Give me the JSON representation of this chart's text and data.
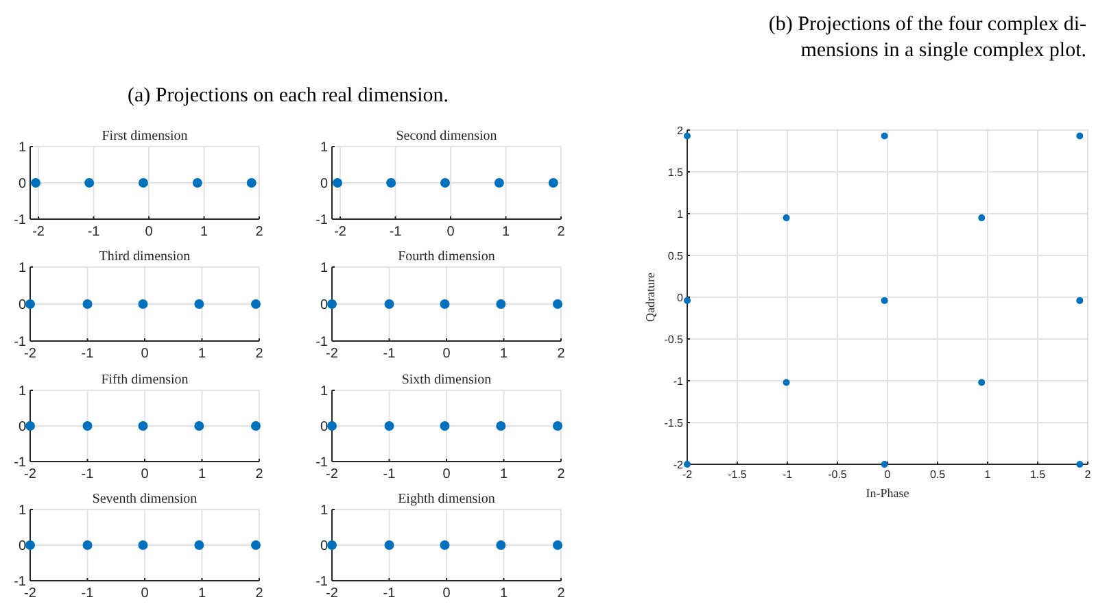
{
  "chart_data": [
    {
      "type": "scatter",
      "title": "First dimension",
      "annotations": [
        "(a) Projections on each real dimension."
      ],
      "x": [
        -2.05,
        -1.08,
        -0.1,
        0.88,
        1.86
      ],
      "series": [
        {
          "color": "#0072bd",
          "values": [
            0,
            0,
            0,
            0,
            0
          ]
        }
      ],
      "xlim": [
        -2.15,
        2
      ],
      "xticks": [
        -2,
        -1,
        0,
        1,
        2
      ],
      "ylim": [
        -1,
        1
      ],
      "yticks": [
        -1,
        0,
        1
      ],
      "grid": true,
      "marker": "circle"
    },
    {
      "type": "scatter",
      "title": "Second dimension",
      "x": [
        -2.05,
        -1.08,
        -0.1,
        0.88,
        1.86
      ],
      "series": [
        {
          "color": "#0072bd",
          "values": [
            0,
            0,
            0,
            0,
            0
          ]
        }
      ],
      "xlim": [
        -2.15,
        2
      ],
      "xticks": [
        -2,
        -1,
        0,
        1,
        2
      ],
      "ylim": [
        -1,
        1
      ],
      "yticks": [
        -1,
        0,
        1
      ],
      "grid": true,
      "marker": "circle"
    },
    {
      "type": "scatter",
      "title": "Third dimension",
      "x": [
        -2,
        -1,
        -0.03,
        0.95,
        1.94
      ],
      "series": [
        {
          "color": "#0072bd",
          "values": [
            0,
            0,
            0,
            0,
            0
          ]
        }
      ],
      "xlim": [
        -2,
        2
      ],
      "xticks": [
        -2,
        -1,
        0,
        1,
        2
      ],
      "ylim": [
        -1,
        1
      ],
      "yticks": [
        -1,
        0,
        1
      ],
      "grid": true,
      "marker": "circle"
    },
    {
      "type": "scatter",
      "title": "Fourth dimension",
      "x": [
        -2,
        -1,
        -0.03,
        0.95,
        1.94
      ],
      "series": [
        {
          "color": "#0072bd",
          "values": [
            0,
            0,
            0,
            0,
            0
          ]
        }
      ],
      "xlim": [
        -2,
        2
      ],
      "xticks": [
        -2,
        -1,
        0,
        1,
        2
      ],
      "ylim": [
        -1,
        1
      ],
      "yticks": [
        -1,
        0,
        1
      ],
      "grid": true,
      "marker": "circle"
    },
    {
      "type": "scatter",
      "title": "Fifth dimension",
      "x": [
        -2,
        -1,
        -0.03,
        0.95,
        1.94
      ],
      "series": [
        {
          "color": "#0072bd",
          "values": [
            0,
            0,
            0,
            0,
            0
          ]
        }
      ],
      "xlim": [
        -2,
        2
      ],
      "xticks": [
        -2,
        -1,
        0,
        1,
        2
      ],
      "ylim": [
        -1,
        1
      ],
      "yticks": [
        -1,
        0,
        1
      ],
      "grid": true,
      "marker": "circle"
    },
    {
      "type": "scatter",
      "title": "Sixth dimension",
      "x": [
        -2,
        -1,
        -0.03,
        0.95,
        1.94
      ],
      "series": [
        {
          "color": "#0072bd",
          "values": [
            0,
            0,
            0,
            0,
            0
          ]
        }
      ],
      "xlim": [
        -2,
        2
      ],
      "xticks": [
        -2,
        -1,
        0,
        1,
        2
      ],
      "ylim": [
        -1,
        1
      ],
      "yticks": [
        -1,
        0,
        1
      ],
      "grid": true,
      "marker": "circle"
    },
    {
      "type": "scatter",
      "title": "Seventh dimension",
      "x": [
        -2,
        -1,
        -0.03,
        0.95,
        1.94
      ],
      "series": [
        {
          "color": "#0072bd",
          "values": [
            0,
            0,
            0,
            0,
            0
          ]
        }
      ],
      "xlim": [
        -2,
        2
      ],
      "xticks": [
        -2,
        -1,
        0,
        1,
        2
      ],
      "ylim": [
        -1,
        1
      ],
      "yticks": [
        -1,
        0,
        1
      ],
      "grid": true,
      "marker": "circle"
    },
    {
      "type": "scatter",
      "title": "Eighth dimension",
      "x": [
        -2,
        -1,
        -0.03,
        0.95,
        1.94
      ],
      "series": [
        {
          "color": "#0072bd",
          "values": [
            0,
            0,
            0,
            0,
            0
          ]
        }
      ],
      "xlim": [
        -2,
        2
      ],
      "xticks": [
        -2,
        -1,
        0,
        1,
        2
      ],
      "ylim": [
        -1,
        1
      ],
      "yticks": [
        -1,
        0,
        1
      ],
      "grid": true,
      "marker": "circle"
    },
    {
      "type": "scatter",
      "title": "(b) Projections of the four complex di-\nmensions in a single complex plot.",
      "xlabel": "In-Phase",
      "ylabel": "Qadrature",
      "x": [
        -2,
        -0.03,
        1.92,
        -1.01,
        0.94,
        -2,
        -0.03,
        1.92,
        -1.01,
        0.94,
        -2,
        -0.03,
        1.92
      ],
      "series": [
        {
          "color": "#0072bd",
          "values": [
            1.93,
            1.93,
            1.93,
            0.95,
            0.95,
            -0.04,
            -0.04,
            -0.04,
            -1.02,
            -1.02,
            -2,
            -2,
            -2
          ]
        }
      ],
      "xlim": [
        -2,
        2
      ],
      "xticks": [
        -2,
        -1.5,
        -1,
        -0.5,
        0,
        0.5,
        1,
        1.5,
        2
      ],
      "ylim": [
        -2,
        2
      ],
      "yticks": [
        -2,
        -1.5,
        -1,
        -0.5,
        0,
        0.5,
        1,
        1.5,
        2
      ],
      "grid": true,
      "marker": "circle"
    }
  ]
}
